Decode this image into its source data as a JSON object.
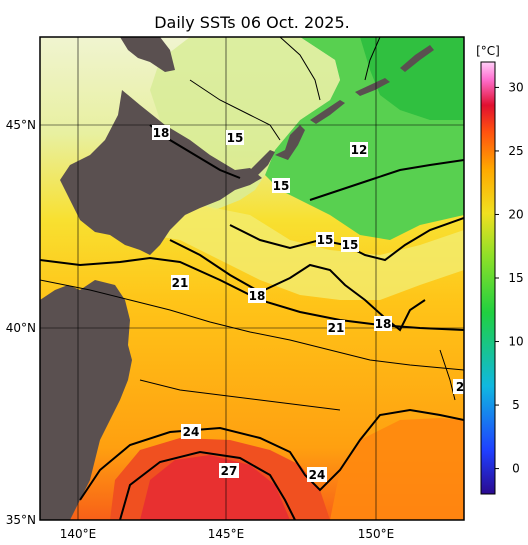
{
  "title": "Daily SSTs 06 Oct. 2025.",
  "lat_ticks": [
    "45°N",
    "40°N",
    "35°N"
  ],
  "lon_ticks": [
    "140°E",
    "145°E",
    "150°E"
  ],
  "colorbar": {
    "unit": "[°C]",
    "ticks": [
      "30",
      "25",
      "20",
      "15",
      "10",
      "5",
      "0"
    ],
    "range": [
      -2,
      32
    ],
    "colors": [
      "#2a0a8f",
      "#1f3fff",
      "#10b8e0",
      "#20d040",
      "#8ee028",
      "#f0e020",
      "#ffaa00",
      "#ff5010",
      "#e01030",
      "#ff70d0",
      "#ffd0f8"
    ]
  },
  "contour_labels": [
    "18",
    "15",
    "15",
    "12",
    "15",
    "15",
    "15",
    "21",
    "18",
    "21",
    "18",
    "2",
    "24",
    "27",
    "24"
  ],
  "colors": {
    "land": "#5a5050",
    "frame": "#000000"
  }
}
